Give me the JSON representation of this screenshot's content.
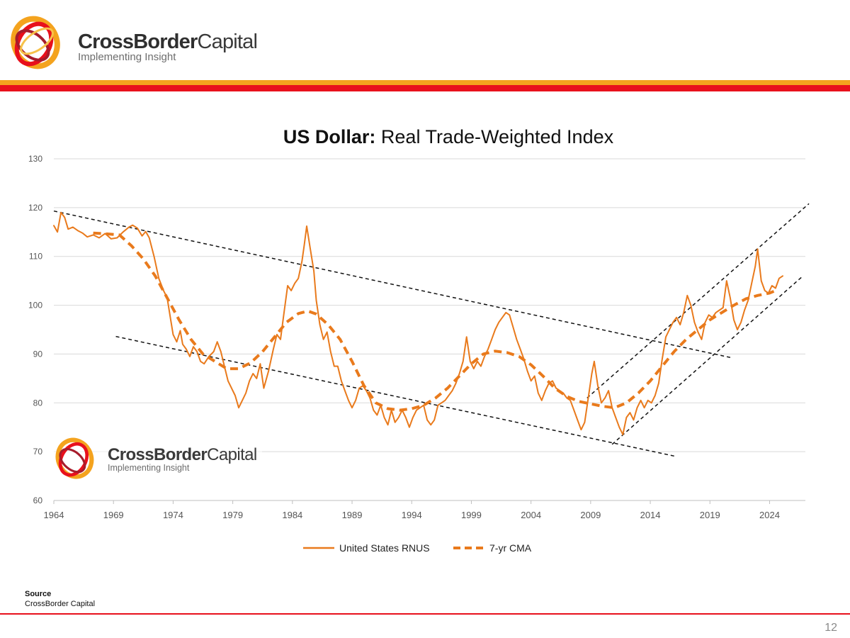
{
  "brand": {
    "name_bold": "CrossBorder",
    "name_light": "Capital",
    "tagline": "Implementing Insight"
  },
  "colors": {
    "orange": "#f4a31e",
    "red": "#e8101c",
    "series": "#e97a1c",
    "trend": "#111111",
    "grid": "#d9d9d9"
  },
  "chart_data": {
    "type": "line",
    "title_bold": "US Dollar:",
    "title_rest": " Real Trade-Weighted Index",
    "xlabel": "",
    "ylabel": "",
    "xlim": [
      1964,
      2027
    ],
    "ylim": [
      60,
      130
    ],
    "y_ticks": [
      60,
      70,
      80,
      90,
      100,
      110,
      120,
      130
    ],
    "x_ticks": [
      1964,
      1969,
      1974,
      1979,
      1984,
      1989,
      1994,
      1999,
      2004,
      2009,
      2014,
      2019,
      2024
    ],
    "grid": "horizontal",
    "legend_position": "bottom",
    "series": [
      {
        "name": "United States RNUS",
        "style": "solid",
        "points": [
          [
            1964.0,
            116.3
          ],
          [
            1964.3,
            115.0
          ],
          [
            1964.6,
            119.0
          ],
          [
            1964.9,
            118.0
          ],
          [
            1965.2,
            115.6
          ],
          [
            1965.6,
            116.0
          ],
          [
            1966.0,
            115.3
          ],
          [
            1966.4,
            114.8
          ],
          [
            1966.8,
            114.0
          ],
          [
            1967.3,
            114.4
          ],
          [
            1967.8,
            113.8
          ],
          [
            1968.3,
            114.7
          ],
          [
            1968.8,
            113.6
          ],
          [
            1969.3,
            113.8
          ],
          [
            1969.8,
            115.0
          ],
          [
            1970.3,
            116.0
          ],
          [
            1970.6,
            116.4
          ],
          [
            1971.0,
            115.8
          ],
          [
            1971.4,
            114.2
          ],
          [
            1971.7,
            115.1
          ],
          [
            1972.0,
            113.8
          ],
          [
            1972.4,
            110.0
          ],
          [
            1972.8,
            105.5
          ],
          [
            1973.2,
            103.0
          ],
          [
            1973.5,
            101.5
          ],
          [
            1973.8,
            97.0
          ],
          [
            1974.0,
            94.0
          ],
          [
            1974.3,
            92.5
          ],
          [
            1974.6,
            94.8
          ],
          [
            1974.8,
            92.0
          ],
          [
            1975.1,
            91.0
          ],
          [
            1975.4,
            89.5
          ],
          [
            1975.7,
            91.5
          ],
          [
            1976.0,
            90.5
          ],
          [
            1976.3,
            88.5
          ],
          [
            1976.6,
            88.0
          ],
          [
            1977.0,
            89.5
          ],
          [
            1977.4,
            90.5
          ],
          [
            1977.7,
            92.5
          ],
          [
            1978.0,
            90.5
          ],
          [
            1978.3,
            87.5
          ],
          [
            1978.6,
            84.5
          ],
          [
            1978.9,
            83.0
          ],
          [
            1979.2,
            81.5
          ],
          [
            1979.5,
            79.0
          ],
          [
            1979.8,
            80.5
          ],
          [
            1980.1,
            82.0
          ],
          [
            1980.4,
            84.5
          ],
          [
            1980.7,
            86.0
          ],
          [
            1981.0,
            85.0
          ],
          [
            1981.3,
            88.0
          ],
          [
            1981.6,
            83.0
          ],
          [
            1982.0,
            86.5
          ],
          [
            1982.4,
            91.0
          ],
          [
            1982.7,
            94.0
          ],
          [
            1983.0,
            93.0
          ],
          [
            1983.3,
            98.5
          ],
          [
            1983.6,
            104.0
          ],
          [
            1983.9,
            103.0
          ],
          [
            1984.2,
            104.5
          ],
          [
            1984.5,
            105.5
          ],
          [
            1984.8,
            109.0
          ],
          [
            1985.0,
            112.5
          ],
          [
            1985.2,
            116.2
          ],
          [
            1985.5,
            111.5
          ],
          [
            1985.8,
            107.0
          ],
          [
            1986.0,
            101.0
          ],
          [
            1986.3,
            96.0
          ],
          [
            1986.6,
            93.0
          ],
          [
            1986.9,
            94.5
          ],
          [
            1987.2,
            90.5
          ],
          [
            1987.5,
            87.5
          ],
          [
            1987.8,
            87.5
          ],
          [
            1988.1,
            84.5
          ],
          [
            1988.4,
            82.5
          ],
          [
            1988.7,
            80.5
          ],
          [
            1989.0,
            79.0
          ],
          [
            1989.3,
            80.5
          ],
          [
            1989.6,
            83.0
          ],
          [
            1989.9,
            83.5
          ],
          [
            1990.2,
            82.5
          ],
          [
            1990.5,
            81.0
          ],
          [
            1990.8,
            78.5
          ],
          [
            1991.1,
            77.5
          ],
          [
            1991.4,
            79.5
          ],
          [
            1991.7,
            77.0
          ],
          [
            1992.0,
            75.5
          ],
          [
            1992.3,
            78.5
          ],
          [
            1992.6,
            76.0
          ],
          [
            1992.9,
            77.0
          ],
          [
            1993.2,
            78.5
          ],
          [
            1993.5,
            77.0
          ],
          [
            1993.8,
            75.0
          ],
          [
            1994.1,
            77.0
          ],
          [
            1994.4,
            78.5
          ],
          [
            1994.7,
            79.0
          ],
          [
            1995.0,
            79.5
          ],
          [
            1995.3,
            76.5
          ],
          [
            1995.6,
            75.5
          ],
          [
            1995.9,
            76.5
          ],
          [
            1996.2,
            79.5
          ],
          [
            1996.5,
            80.0
          ],
          [
            1996.8,
            80.5
          ],
          [
            1997.1,
            81.5
          ],
          [
            1997.4,
            82.5
          ],
          [
            1997.7,
            84.0
          ],
          [
            1998.0,
            86.0
          ],
          [
            1998.3,
            88.5
          ],
          [
            1998.6,
            93.5
          ],
          [
            1998.9,
            88.5
          ],
          [
            1999.2,
            87.0
          ],
          [
            1999.5,
            88.5
          ],
          [
            1999.8,
            87.5
          ],
          [
            2000.1,
            89.5
          ],
          [
            2000.4,
            91.0
          ],
          [
            2000.7,
            93.0
          ],
          [
            2001.0,
            95.0
          ],
          [
            2001.3,
            96.5
          ],
          [
            2001.6,
            97.5
          ],
          [
            2001.9,
            98.5
          ],
          [
            2002.2,
            98.0
          ],
          [
            2002.5,
            95.5
          ],
          [
            2002.8,
            93.0
          ],
          [
            2003.1,
            91.0
          ],
          [
            2003.4,
            89.0
          ],
          [
            2003.7,
            86.5
          ],
          [
            2004.0,
            84.5
          ],
          [
            2004.3,
            85.5
          ],
          [
            2004.6,
            82.0
          ],
          [
            2004.9,
            80.5
          ],
          [
            2005.2,
            82.5
          ],
          [
            2005.5,
            84.0
          ],
          [
            2005.8,
            84.5
          ],
          [
            2006.1,
            83.0
          ],
          [
            2006.4,
            82.5
          ],
          [
            2006.7,
            82.0
          ],
          [
            2007.0,
            81.0
          ],
          [
            2007.3,
            80.5
          ],
          [
            2007.6,
            78.5
          ],
          [
            2007.9,
            76.5
          ],
          [
            2008.2,
            74.5
          ],
          [
            2008.5,
            76.0
          ],
          [
            2008.8,
            81.0
          ],
          [
            2009.1,
            86.0
          ],
          [
            2009.3,
            88.5
          ],
          [
            2009.6,
            83.5
          ],
          [
            2009.9,
            80.0
          ],
          [
            2010.2,
            81.0
          ],
          [
            2010.5,
            82.5
          ],
          [
            2010.8,
            79.0
          ],
          [
            2011.1,
            77.0
          ],
          [
            2011.4,
            75.0
          ],
          [
            2011.7,
            73.5
          ],
          [
            2012.0,
            77.0
          ],
          [
            2012.3,
            78.0
          ],
          [
            2012.6,
            76.5
          ],
          [
            2012.9,
            79.0
          ],
          [
            2013.2,
            80.5
          ],
          [
            2013.5,
            79.0
          ],
          [
            2013.8,
            80.5
          ],
          [
            2014.1,
            80.0
          ],
          [
            2014.4,
            81.5
          ],
          [
            2014.7,
            84.0
          ],
          [
            2015.0,
            89.0
          ],
          [
            2015.3,
            93.5
          ],
          [
            2015.6,
            95.0
          ],
          [
            2015.9,
            96.5
          ],
          [
            2016.2,
            97.5
          ],
          [
            2016.5,
            96.0
          ],
          [
            2016.8,
            98.5
          ],
          [
            2017.1,
            102.0
          ],
          [
            2017.4,
            100.0
          ],
          [
            2017.7,
            96.5
          ],
          [
            2018.0,
            94.5
          ],
          [
            2018.3,
            93.0
          ],
          [
            2018.6,
            96.5
          ],
          [
            2018.9,
            98.0
          ],
          [
            2019.2,
            97.5
          ],
          [
            2019.5,
            98.5
          ],
          [
            2019.8,
            99.0
          ],
          [
            2020.1,
            99.5
          ],
          [
            2020.4,
            105.0
          ],
          [
            2020.7,
            101.5
          ],
          [
            2021.0,
            97.0
          ],
          [
            2021.3,
            95.0
          ],
          [
            2021.6,
            96.5
          ],
          [
            2021.9,
            99.0
          ],
          [
            2022.2,
            101.0
          ],
          [
            2022.5,
            104.5
          ],
          [
            2022.8,
            108.0
          ],
          [
            2023.0,
            111.5
          ],
          [
            2023.3,
            105.0
          ],
          [
            2023.6,
            103.0
          ],
          [
            2023.9,
            102.5
          ],
          [
            2024.2,
            104.0
          ],
          [
            2024.5,
            103.5
          ],
          [
            2024.8,
            105.5
          ],
          [
            2025.1,
            106.0
          ]
        ]
      },
      {
        "name": "7-yr CMA",
        "style": "dashed",
        "points": [
          [
            1967.3,
            114.8
          ],
          [
            1968.5,
            114.6
          ],
          [
            1969.5,
            114.4
          ],
          [
            1970.5,
            112.2
          ],
          [
            1971.5,
            109.5
          ],
          [
            1972.5,
            106.0
          ],
          [
            1973.5,
            101.5
          ],
          [
            1974.5,
            97.0
          ],
          [
            1975.5,
            93.0
          ],
          [
            1976.5,
            90.0
          ],
          [
            1977.5,
            88.5
          ],
          [
            1978.5,
            87.0
          ],
          [
            1979.5,
            87.0
          ],
          [
            1980.5,
            88.2
          ],
          [
            1981.5,
            90.5
          ],
          [
            1982.5,
            93.5
          ],
          [
            1983.5,
            96.5
          ],
          [
            1984.5,
            98.3
          ],
          [
            1985.3,
            98.8
          ],
          [
            1986.0,
            98.2
          ],
          [
            1987.0,
            96.0
          ],
          [
            1988.0,
            93.0
          ],
          [
            1989.0,
            88.5
          ],
          [
            1990.0,
            83.5
          ],
          [
            1991.0,
            80.0
          ],
          [
            1992.0,
            78.8
          ],
          [
            1993.0,
            78.5
          ],
          [
            1994.0,
            78.8
          ],
          [
            1995.0,
            79.5
          ],
          [
            1996.0,
            81.0
          ],
          [
            1997.0,
            83.0
          ],
          [
            1998.0,
            85.5
          ],
          [
            1999.0,
            88.0
          ],
          [
            2000.0,
            90.0
          ],
          [
            2001.0,
            90.6
          ],
          [
            2002.0,
            90.3
          ],
          [
            2003.0,
            89.5
          ],
          [
            2004.0,
            87.8
          ],
          [
            2005.0,
            85.5
          ],
          [
            2006.0,
            83.0
          ],
          [
            2007.0,
            81.3
          ],
          [
            2008.0,
            80.3
          ],
          [
            2009.0,
            79.8
          ],
          [
            2010.0,
            79.3
          ],
          [
            2011.0,
            79.0
          ],
          [
            2012.0,
            80.0
          ],
          [
            2013.0,
            82.0
          ],
          [
            2014.0,
            84.5
          ],
          [
            2015.0,
            87.5
          ],
          [
            2016.0,
            90.5
          ],
          [
            2017.0,
            93.0
          ],
          [
            2018.0,
            95.0
          ],
          [
            2019.0,
            97.0
          ],
          [
            2020.0,
            98.5
          ],
          [
            2021.0,
            100.0
          ],
          [
            2022.0,
            101.3
          ],
          [
            2023.0,
            102.0
          ],
          [
            2024.0,
            102.5
          ],
          [
            2024.7,
            103.2
          ]
        ]
      }
    ],
    "trend_lines": [
      {
        "name": "upper-resistance",
        "from": [
          1964.0,
          119.3
        ],
        "to": [
          2020.7,
          89.3
        ]
      },
      {
        "name": "lower-support",
        "from": [
          1969.2,
          93.6
        ],
        "to": [
          2016.2,
          69.0
        ]
      },
      {
        "name": "channel-upper",
        "from": [
          2008.7,
          81.0
        ],
        "to": [
          2027.3,
          120.8
        ]
      },
      {
        "name": "channel-lower",
        "from": [
          2010.8,
          71.5
        ],
        "to": [
          2026.8,
          106.0
        ]
      }
    ]
  },
  "source": {
    "label": "Source",
    "text": "CrossBorder Capital"
  },
  "page_number": "12"
}
